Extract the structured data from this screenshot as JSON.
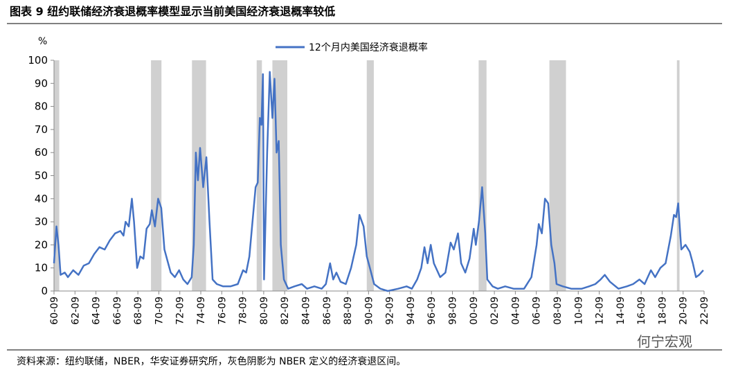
{
  "chart_data": {
    "type": "line",
    "title": "图表 9  纽约联储经济衰退概率模型显示当前美国经济衰退概率较低",
    "y_unit": "%",
    "source": "资料来源：纽约联储，NBER，华安证券研究所，灰色阴影为 NBER 定义的经济衰退区间。",
    "watermark": "何宁宏观",
    "xlim": [
      1960.67,
      2022.67
    ],
    "xticks": [
      {
        "value": 1960.67,
        "label": "60-09"
      },
      {
        "value": 1962.67,
        "label": "62-09"
      },
      {
        "value": 1964.67,
        "label": "64-09"
      },
      {
        "value": 1966.67,
        "label": "66-09"
      },
      {
        "value": 1968.67,
        "label": "68-09"
      },
      {
        "value": 1970.67,
        "label": "70-09"
      },
      {
        "value": 1972.67,
        "label": "72-09"
      },
      {
        "value": 1974.67,
        "label": "74-09"
      },
      {
        "value": 1976.67,
        "label": "76-09"
      },
      {
        "value": 1978.67,
        "label": "78-09"
      },
      {
        "value": 1980.67,
        "label": "80-09"
      },
      {
        "value": 1982.67,
        "label": "82-09"
      },
      {
        "value": 1984.67,
        "label": "84-09"
      },
      {
        "value": 1986.67,
        "label": "86-09"
      },
      {
        "value": 1988.67,
        "label": "88-09"
      },
      {
        "value": 1990.67,
        "label": "90-09"
      },
      {
        "value": 1992.67,
        "label": "92-09"
      },
      {
        "value": 1994.67,
        "label": "94-09"
      },
      {
        "value": 1996.67,
        "label": "96-09"
      },
      {
        "value": 1998.67,
        "label": "98-09"
      },
      {
        "value": 2000.67,
        "label": "00-09"
      },
      {
        "value": 2002.67,
        "label": "02-09"
      },
      {
        "value": 2004.67,
        "label": "04-09"
      },
      {
        "value": 2006.67,
        "label": "06-09"
      },
      {
        "value": 2008.67,
        "label": "08-09"
      },
      {
        "value": 2010.67,
        "label": "10-09"
      },
      {
        "value": 2012.67,
        "label": "12-09"
      },
      {
        "value": 2014.67,
        "label": "14-09"
      },
      {
        "value": 2016.67,
        "label": "16-09"
      },
      {
        "value": 2018.67,
        "label": "18-09"
      },
      {
        "value": 2020.67,
        "label": "20-09"
      },
      {
        "value": 2022.67,
        "label": "22-09"
      }
    ],
    "ylim": [
      0,
      100
    ],
    "yticks": [
      0,
      10,
      20,
      30,
      40,
      50,
      60,
      70,
      80,
      90,
      100
    ],
    "recessions": [
      [
        1960.33,
        1961.17
      ],
      [
        1969.92,
        1970.92
      ],
      [
        1973.83,
        1975.17
      ],
      [
        1980.0,
        1980.5
      ],
      [
        1981.5,
        1982.92
      ],
      [
        1990.5,
        1991.17
      ],
      [
        2001.17,
        2001.92
      ],
      [
        2007.92,
        2009.5
      ],
      [
        2020.08,
        2020.33
      ]
    ],
    "x": [
      1960.67,
      1960.9,
      1961.1,
      1961.3,
      1961.7,
      1962.0,
      1962.5,
      1963.0,
      1963.5,
      1964.0,
      1964.5,
      1965.0,
      1965.5,
      1966.0,
      1966.5,
      1967.0,
      1967.3,
      1967.5,
      1967.8,
      1968.1,
      1968.3,
      1968.6,
      1968.9,
      1969.2,
      1969.5,
      1969.8,
      1970.0,
      1970.3,
      1970.6,
      1970.9,
      1971.2,
      1971.5,
      1971.8,
      1972.2,
      1972.6,
      1973.0,
      1973.4,
      1973.8,
      1974.0,
      1974.2,
      1974.4,
      1974.6,
      1974.9,
      1975.2,
      1975.5,
      1975.8,
      1976.2,
      1976.8,
      1977.5,
      1978.2,
      1978.7,
      1979.0,
      1979.3,
      1979.6,
      1979.9,
      1980.1,
      1980.3,
      1980.45,
      1980.6,
      1980.7,
      1981.0,
      1981.25,
      1981.5,
      1981.7,
      1981.9,
      1982.1,
      1982.3,
      1982.6,
      1983.0,
      1983.6,
      1984.3,
      1984.8,
      1985.5,
      1986.2,
      1986.6,
      1987.0,
      1987.3,
      1987.6,
      1988.0,
      1988.5,
      1989.0,
      1989.5,
      1989.8,
      1990.2,
      1990.5,
      1990.8,
      1991.2,
      1991.8,
      1992.5,
      1993.5,
      1994.3,
      1994.8,
      1995.3,
      1995.7,
      1996.0,
      1996.3,
      1996.6,
      1996.9,
      1997.5,
      1998.0,
      1998.5,
      1998.8,
      1999.2,
      1999.5,
      1999.9,
      2000.3,
      2000.7,
      2000.9,
      2001.2,
      2001.5,
      2001.8,
      2002.0,
      2002.5,
      2003.0,
      2003.7,
      2004.5,
      2005.5,
      2006.2,
      2006.7,
      2006.9,
      2007.2,
      2007.5,
      2007.8,
      2008.1,
      2008.4,
      2008.6,
      2009.2,
      2010.0,
      2011.0,
      2011.7,
      2012.3,
      2012.8,
      2013.2,
      2013.7,
      2014.5,
      2015.3,
      2015.9,
      2016.5,
      2017.0,
      2017.6,
      2018.0,
      2018.5,
      2019.0,
      2019.5,
      2019.8,
      2020.0,
      2020.2,
      2020.5,
      2020.9,
      2021.3,
      2021.6,
      2021.9,
      2022.2,
      2022.6
    ],
    "series": [
      {
        "name": "12个月内美国经济衰退概率",
        "color": "#4472c4",
        "values": [
          12,
          28,
          20,
          7,
          8,
          6,
          9,
          7,
          11,
          12,
          16,
          19,
          18,
          22,
          25,
          26,
          24,
          30,
          28,
          40,
          30,
          10,
          15,
          14,
          27,
          29,
          35,
          28,
          40,
          36,
          18,
          13,
          8,
          6,
          9,
          5,
          3,
          6,
          20,
          60,
          48,
          62,
          45,
          58,
          30,
          5,
          3,
          2,
          2,
          3,
          9,
          8,
          15,
          30,
          45,
          47,
          75,
          72,
          94,
          5,
          60,
          95,
          75,
          92,
          60,
          65,
          20,
          5,
          1,
          2,
          3,
          1,
          2,
          1,
          3,
          12,
          5,
          8,
          4,
          3,
          10,
          20,
          33,
          28,
          15,
          10,
          3,
          1,
          0,
          1,
          2,
          1,
          5,
          10,
          19,
          12,
          20,
          12,
          6,
          8,
          21,
          18,
          25,
          12,
          8,
          14,
          27,
          20,
          30,
          45,
          25,
          5,
          2,
          1,
          2,
          1,
          1,
          6,
          20,
          29,
          25,
          40,
          38,
          20,
          12,
          3,
          2,
          1,
          1,
          2,
          3,
          5,
          7,
          4,
          1,
          2,
          3,
          5,
          3,
          9,
          6,
          10,
          12,
          24,
          33,
          32,
          38,
          18,
          20,
          17,
          12,
          6,
          7,
          9
        ]
      }
    ]
  }
}
